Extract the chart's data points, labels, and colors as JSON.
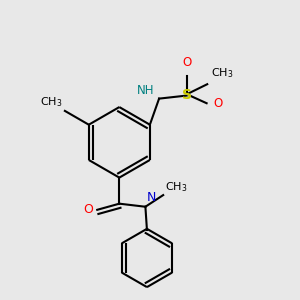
{
  "bg_color": "#e8e8e8",
  "bond_color": "#000000",
  "atom_colors": {
    "O": "#ff0000",
    "N": "#0000cd",
    "S": "#cccc00",
    "NH": "#008080",
    "C": "#000000"
  },
  "lw": 1.5,
  "fs": 8,
  "fig_w": 3.0,
  "fig_h": 3.0,
  "dpi": 100
}
